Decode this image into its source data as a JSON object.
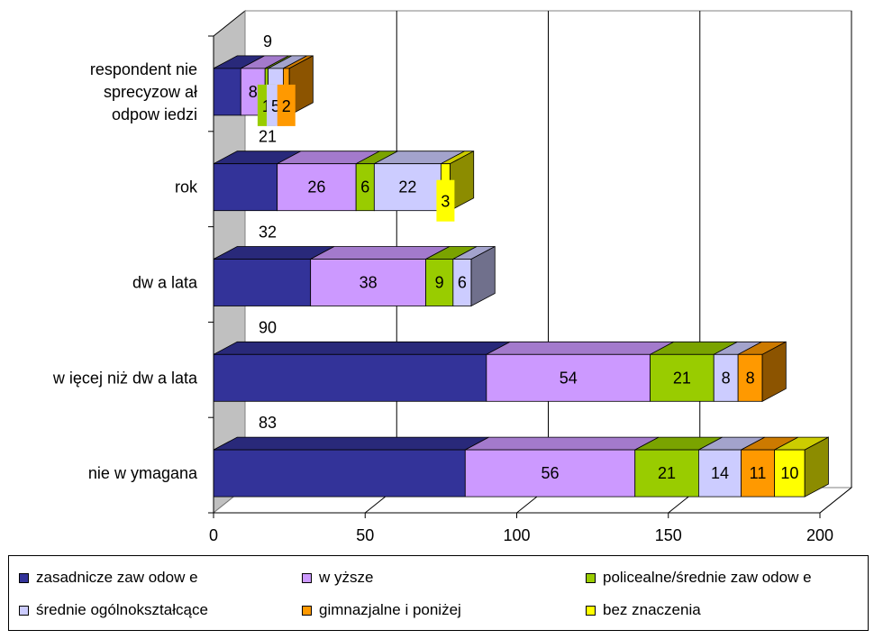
{
  "chart_data": {
    "type": "bar",
    "orientation": "horizontal",
    "stacked": true,
    "three_d": true,
    "categories": [
      "respondent nie sprecyzow ał odpow iedzi",
      "rok",
      "dw a lata",
      "w ięcej niż dw a lata",
      "nie w ymagana"
    ],
    "series": [
      {
        "name": "zasadnicze zaw odow e",
        "color": "#333399",
        "values": [
          9,
          21,
          32,
          90,
          83
        ]
      },
      {
        "name": "w yższe",
        "color": "#CC99FF",
        "values": [
          8,
          26,
          38,
          54,
          56
        ]
      },
      {
        "name": "policealne/średnie zaw odow e",
        "color": "#99CC00",
        "values": [
          1,
          6,
          9,
          21,
          21
        ]
      },
      {
        "name": "średnie ogólnokształcące",
        "color": "#CCCCFF",
        "values": [
          5,
          22,
          6,
          8,
          14
        ]
      },
      {
        "name": "gimnazjalne i poniżej",
        "color": "#FF9900",
        "values": [
          2,
          0,
          0,
          8,
          11
        ]
      },
      {
        "name": "bez znaczenia",
        "color": "#FFFF00",
        "values": [
          0,
          3,
          0,
          0,
          10
        ]
      }
    ],
    "category_label_lines": [
      [
        "respondent nie",
        "sprecyzow ał",
        "odpow iedzi"
      ],
      [
        "rok"
      ],
      [
        "dw a lata"
      ],
      [
        "w ięcej niż dw a lata"
      ],
      [
        "nie w ymagana"
      ]
    ],
    "data_labels": [
      [
        "9",
        "8",
        "1",
        "5",
        "2",
        ""
      ],
      [
        "21",
        "26",
        "6",
        "22",
        "",
        "3"
      ],
      [
        "32",
        "38",
        "9",
        "6",
        "",
        ""
      ],
      [
        "90",
        "54",
        "21",
        "8",
        "8",
        ""
      ],
      [
        "83",
        "56",
        "21",
        "14",
        "11",
        "10"
      ]
    ],
    "x_ticks": [
      "0",
      "50",
      "100",
      "150",
      "200"
    ],
    "xlim": [
      0,
      200
    ],
    "gridlines": true,
    "legend": "bottom"
  }
}
